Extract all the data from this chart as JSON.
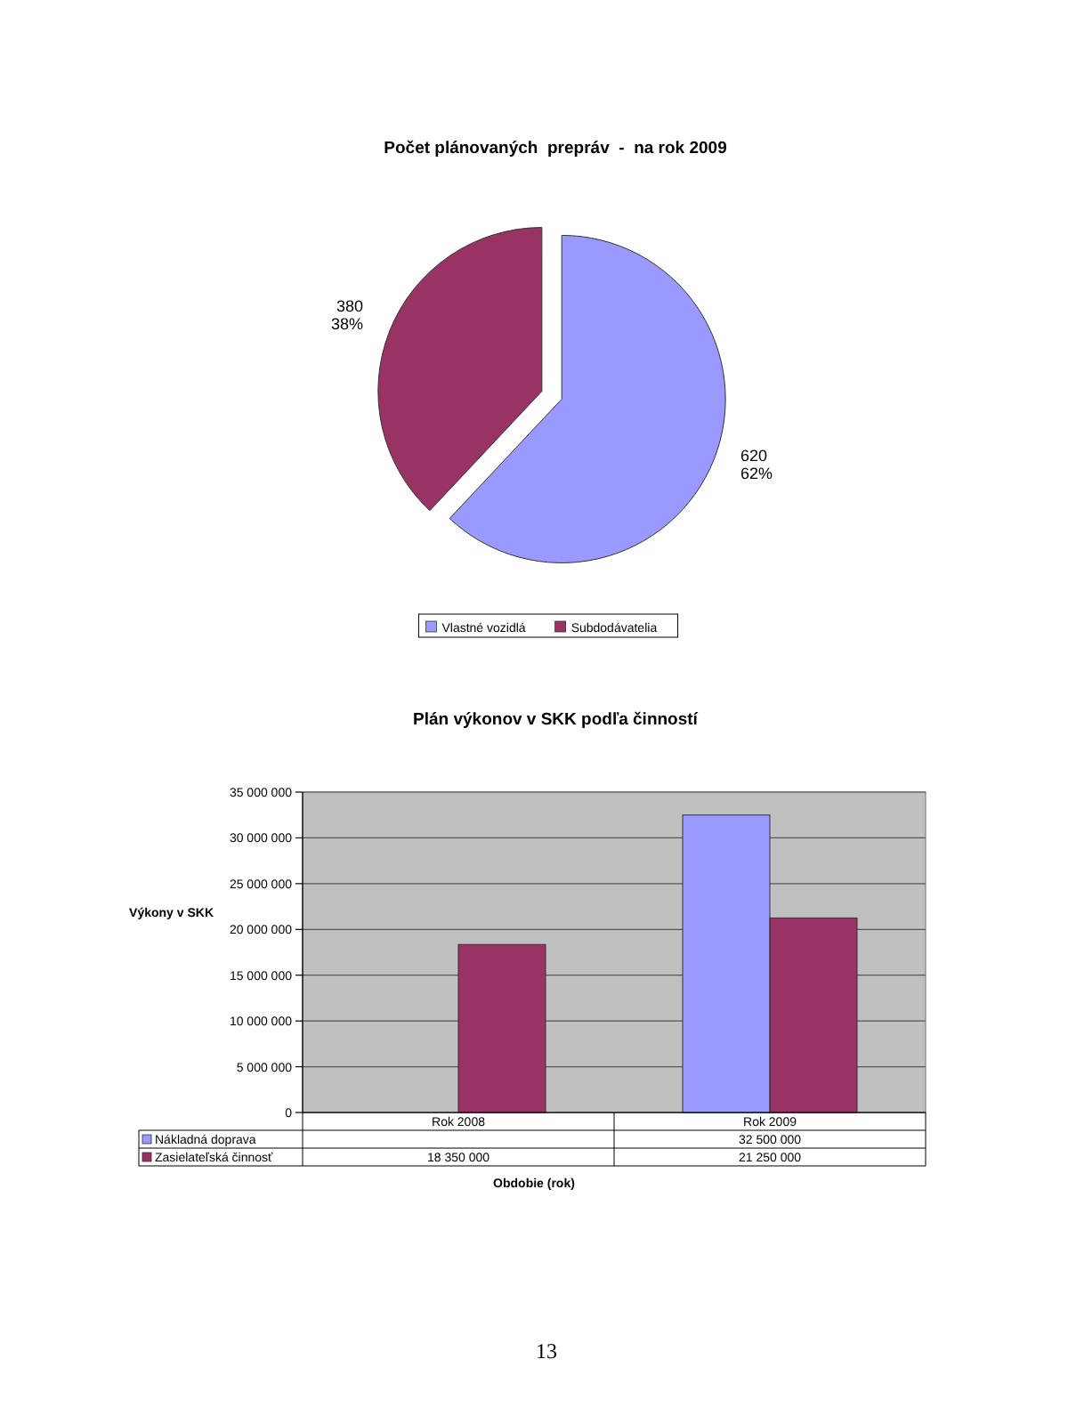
{
  "chart_data": [
    {
      "type": "pie",
      "title": "Počet plánovaných  prepráv  -  na rok 2009",
      "categories": [
        "Vlastné vozidlá",
        "Subdodávatelia"
      ],
      "values": [
        620,
        380
      ],
      "colors": [
        "#9999ff",
        "#993366"
      ],
      "value_labels": [
        "620\n62%",
        "380\n38%"
      ],
      "legend": "bottom"
    },
    {
      "type": "bar",
      "title": "Plán výkonov v SKK podľa činností",
      "xlabel": "Obdobie (rok)",
      "ylabel": "Výkony v SKK",
      "categories": [
        "Rok 2008",
        "Rok 2009"
      ],
      "series": [
        {
          "name": "Nákladná doprava",
          "color": "#9999ff",
          "values": [
            null,
            32500000
          ],
          "value_labels": [
            null,
            "32 500 000"
          ]
        },
        {
          "name": "Zasielateľská činnosť",
          "color": "#993366",
          "values": [
            18350000,
            21250000
          ],
          "value_labels": [
            "18 350 000",
            "21 250 000"
          ]
        }
      ],
      "ylim": [
        0,
        35000000
      ],
      "yticks": [
        {
          "value": 0,
          "label": "0"
        },
        {
          "value": 5000000,
          "label": "5 000 000"
        },
        {
          "value": 10000000,
          "label": "10 000 000"
        },
        {
          "value": 15000000,
          "label": "15 000 000"
        },
        {
          "value": 20000000,
          "label": "20 000 000"
        },
        {
          "value": 25000000,
          "label": "25 000 000"
        },
        {
          "value": 30000000,
          "label": "30 000 000"
        },
        {
          "value": 35000000,
          "label": "35 000 000"
        }
      ],
      "grid": "y",
      "legend": "bottom",
      "annotations": [
        "13"
      ]
    }
  ]
}
